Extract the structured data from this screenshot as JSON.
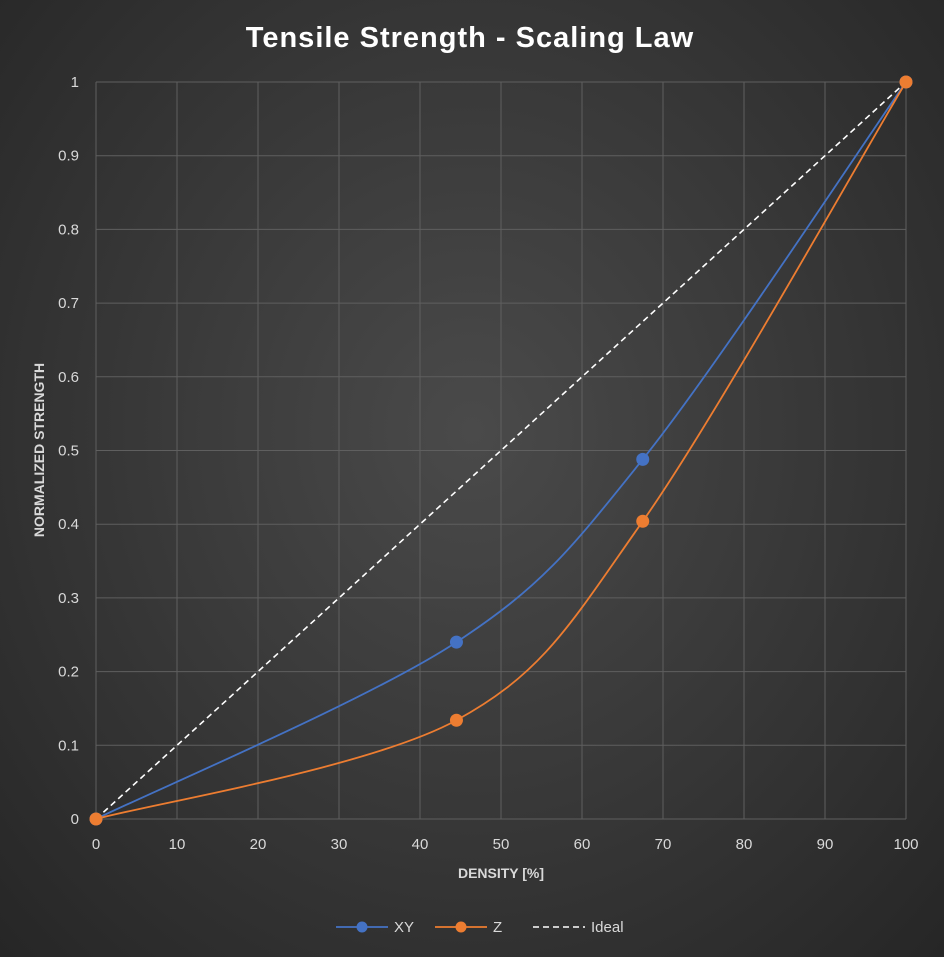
{
  "chart_data": {
    "type": "scatter",
    "title": "Tensile Strength - Scaling Law",
    "xlabel": "DENSITY [%]",
    "ylabel": "NORMALIZED STRENGTH",
    "xlim": [
      0,
      100
    ],
    "ylim": [
      0,
      1
    ],
    "x_ticks": [
      "0",
      "10",
      "20",
      "30",
      "40",
      "50",
      "60",
      "70",
      "80",
      "90",
      "100"
    ],
    "y_ticks": [
      "0",
      "0.1",
      "0.2",
      "0.3",
      "0.4",
      "0.5",
      "0.6",
      "0.7",
      "0.8",
      "0.9",
      "1"
    ],
    "grid": true,
    "legend_position": "bottom",
    "series": [
      {
        "name": "XY",
        "color": "#4472c4",
        "line": "smooth",
        "markers": true,
        "points": [
          [
            0,
            0
          ],
          [
            44.5,
            0.24
          ],
          [
            67.5,
            0.488
          ],
          [
            100,
            1
          ]
        ]
      },
      {
        "name": "Z",
        "color": "#ed7d31",
        "line": "smooth",
        "markers": true,
        "points": [
          [
            0,
            0
          ],
          [
            44.5,
            0.134
          ],
          [
            67.5,
            0.404
          ],
          [
            100,
            1
          ]
        ]
      },
      {
        "name": "Ideal",
        "color": "#ffffff",
        "line": "dashed",
        "markers": false,
        "points": [
          [
            0,
            0
          ],
          [
            100,
            1
          ]
        ]
      }
    ]
  }
}
